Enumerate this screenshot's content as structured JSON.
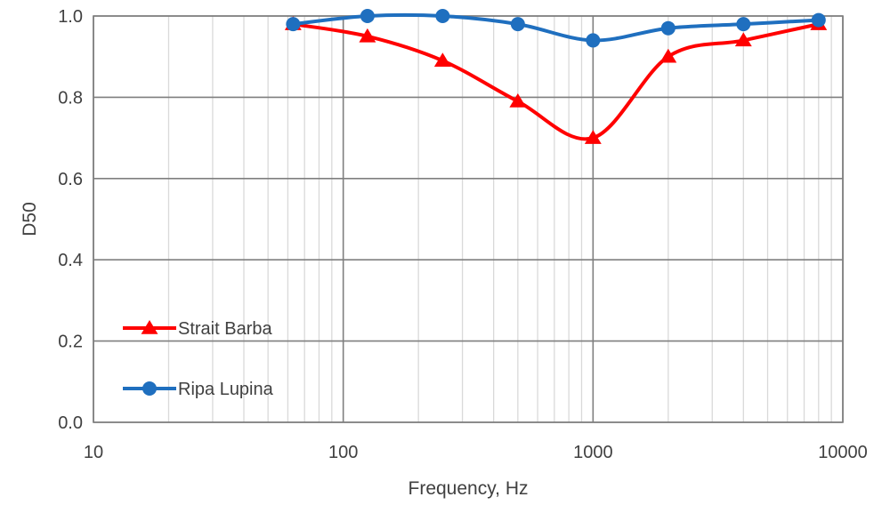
{
  "chart_data": {
    "type": "line",
    "title": "",
    "xlabel": "Frequency, Hz",
    "ylabel": "D50",
    "xscale": "log",
    "xlim": [
      10,
      10000
    ],
    "ylim": [
      0,
      1.0
    ],
    "x_ticks": [
      "10",
      "100",
      "1000",
      "10000"
    ],
    "y_ticks": [
      "0.0",
      "0.2",
      "0.4",
      "0.6",
      "0.8",
      "1.0"
    ],
    "grid": true,
    "legend_position": "bottom-left",
    "x": [
      63,
      125,
      250,
      500,
      1000,
      2000,
      4000,
      8000
    ],
    "series": [
      {
        "name": "Strait Barba",
        "color": "#ff0000",
        "marker": "triangle",
        "values": [
          0.98,
          0.95,
          0.89,
          0.79,
          0.7,
          0.9,
          0.94,
          0.98
        ]
      },
      {
        "name": "Ripa Lupina",
        "color": "#1f6fbf",
        "marker": "circle",
        "values": [
          0.98,
          1.0,
          1.0,
          0.98,
          0.94,
          0.97,
          0.98,
          0.99
        ]
      }
    ]
  }
}
